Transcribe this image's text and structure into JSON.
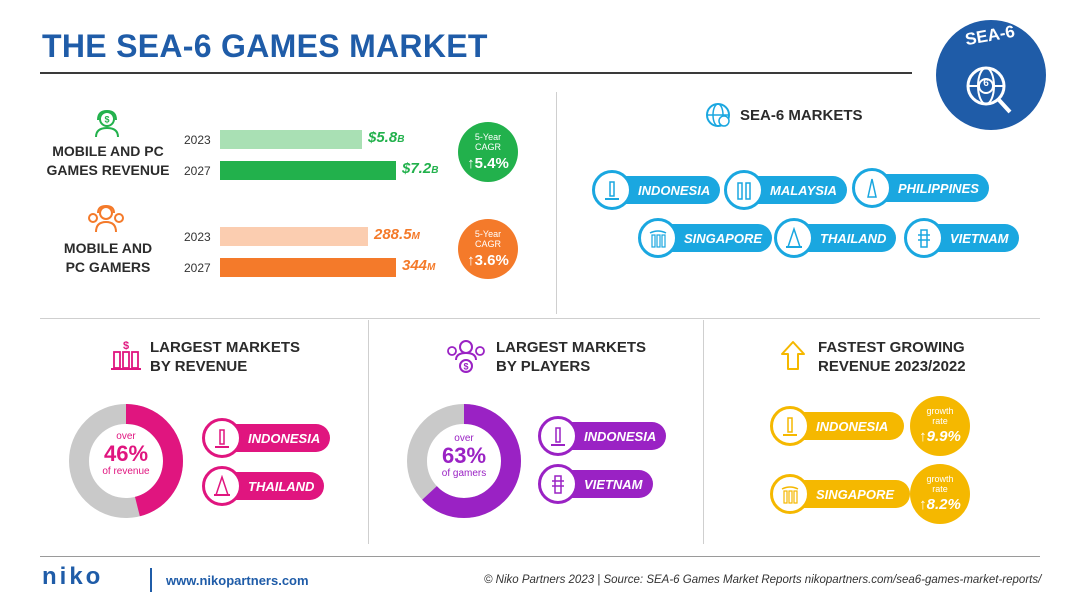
{
  "title": "THE SEA-6 GAMES MARKET",
  "badge": {
    "label": "SEA-6",
    "number": "6"
  },
  "colors": {
    "blue": "#1f5ca8",
    "green": "#22b14c",
    "light_green": "#a9e0b4",
    "orange": "#f47a2a",
    "light_orange": "#fbcdb0",
    "cyan": "#1aa7e0",
    "magenta": "#e0157f",
    "purple": "#9a22c4",
    "yellow": "#f5b800",
    "gray": "#c9c9c9"
  },
  "revenue": {
    "label": "MOBILE AND PC GAMES REVENUE",
    "label_line1": "MOBILE AND PC",
    "label_line2": "GAMES REVENUE",
    "icon": "money-headset-icon",
    "cagr_title_line1": "5-Year",
    "cagr_title_line2": "CAGR",
    "cagr_value": "5.4%",
    "bars": [
      {
        "year": "2023",
        "value": "$5.8",
        "unit": "B"
      },
      {
        "year": "2027",
        "value": "$7.2",
        "unit": "B"
      }
    ]
  },
  "gamers": {
    "label_line1": "MOBILE AND",
    "label_line2": "PC GAMERS",
    "icon": "users-headset-icon",
    "cagr_title_line1": "5-Year",
    "cagr_title_line2": "CAGR",
    "cagr_value": "3.6%",
    "bars": [
      {
        "year": "2023",
        "value": "288.5",
        "unit": "M"
      },
      {
        "year": "2027",
        "value": "344",
        "unit": "M"
      }
    ]
  },
  "markets": {
    "heading": "SEA-6 MARKETS",
    "icon": "globe-dollar-icon",
    "items": [
      "INDONESIA",
      "MALAYSIA",
      "PHILIPPINES",
      "SINGAPORE",
      "THAILAND",
      "VIETNAM"
    ]
  },
  "largest_revenue": {
    "heading_line1": "LARGEST MARKETS",
    "heading_line2": "BY REVENUE",
    "center_line1": "over",
    "center_value": "46%",
    "center_line3": "of revenue",
    "markets": [
      "INDONESIA",
      "THAILAND"
    ]
  },
  "largest_players": {
    "heading_line1": "LARGEST MARKETS",
    "heading_line2": "BY PLAYERS",
    "center_line1": "over",
    "center_value": "63%",
    "center_line3": "of gamers",
    "markets": [
      "INDONESIA",
      "VIETNAM"
    ]
  },
  "fastest": {
    "heading_line1": "FASTEST GROWING",
    "heading_line2": "REVENUE 2023/2022",
    "items": [
      {
        "market": "INDONESIA",
        "label_line1": "growth",
        "label_line2": "rate",
        "value": "9.9%"
      },
      {
        "market": "SINGAPORE",
        "label_line1": "growth",
        "label_line2": "rate",
        "value": "8.2%"
      }
    ]
  },
  "chart_data": [
    {
      "type": "bar",
      "title": "MOBILE AND PC GAMES REVENUE",
      "categories": [
        "2023",
        "2027"
      ],
      "values": [
        5.8,
        7.2
      ],
      "xlabel": "",
      "ylabel": ""
    },
    {
      "type": "bar",
      "title": "MOBILE AND PC GAMERS",
      "categories": [
        "2023",
        "2027"
      ],
      "values": [
        288.5,
        344
      ],
      "xlabel": "",
      "ylabel": ""
    },
    {
      "type": "pie",
      "title": "LARGEST MARKETS BY REVENUE",
      "values": [
        46,
        54
      ]
    },
    {
      "type": "pie",
      "title": "LARGEST MARKETS BY PLAYERS",
      "values": [
        63,
        37
      ]
    }
  ],
  "footer": {
    "logo": "niko",
    "website": "www.nikopartners.com",
    "credit": "© Niko Partners 2023 | Source: SEA-6 Games Market Reports nikopartners.com/sea6-games-market-reports/"
  }
}
